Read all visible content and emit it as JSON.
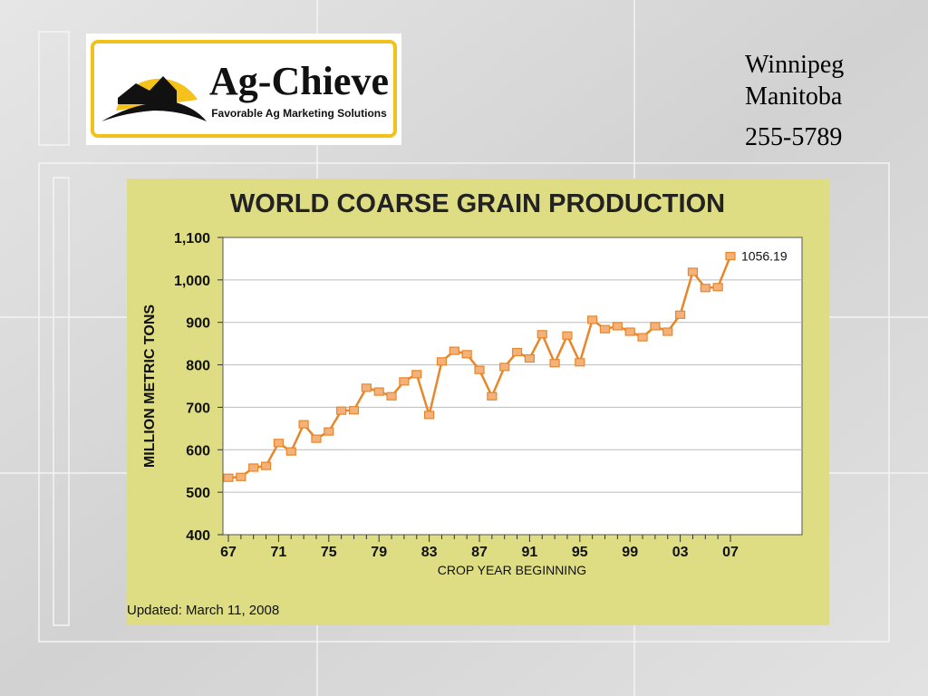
{
  "header": {
    "logo_title": "Ag-Chieve",
    "logo_tagline": "Favorable Ag Marketing Solutions",
    "contact": [
      "Winnipeg",
      "Manitoba",
      "255-5789"
    ]
  },
  "chart_data": {
    "type": "line",
    "title": "WORLD COARSE GRAIN PRODUCTION",
    "y_label": "MILLION METRIC TONS",
    "x_label": "CROP YEAR BEGINNING",
    "note": "Updated: March 11, 2008",
    "categories": [
      "67",
      null,
      null,
      null,
      "71",
      null,
      null,
      null,
      "75",
      null,
      null,
      null,
      "79",
      null,
      null,
      null,
      "83",
      null,
      null,
      null,
      "87",
      null,
      null,
      null,
      "91",
      null,
      null,
      null,
      "95",
      null,
      null,
      null,
      "99",
      null,
      null,
      null,
      "03",
      null,
      null,
      null,
      "07"
    ],
    "values": [
      534,
      536,
      558,
      562,
      616,
      596,
      660,
      626,
      643,
      692,
      693,
      746,
      737,
      726,
      761,
      778,
      682,
      808,
      833,
      825,
      788,
      726,
      795,
      830,
      815,
      872,
      804,
      869,
      806,
      906,
      884,
      891,
      878,
      865,
      891,
      878,
      918,
      1019,
      981,
      983,
      1056.19
    ],
    "color": "#e8862a",
    "ylim": [
      400,
      1100
    ],
    "yticks": [
      400,
      500,
      600,
      700,
      800,
      900,
      {
        "value": 1000,
        "label": "1,000"
      },
      {
        "value": 1100,
        "label": "1,100"
      }
    ],
    "grid": true
  }
}
